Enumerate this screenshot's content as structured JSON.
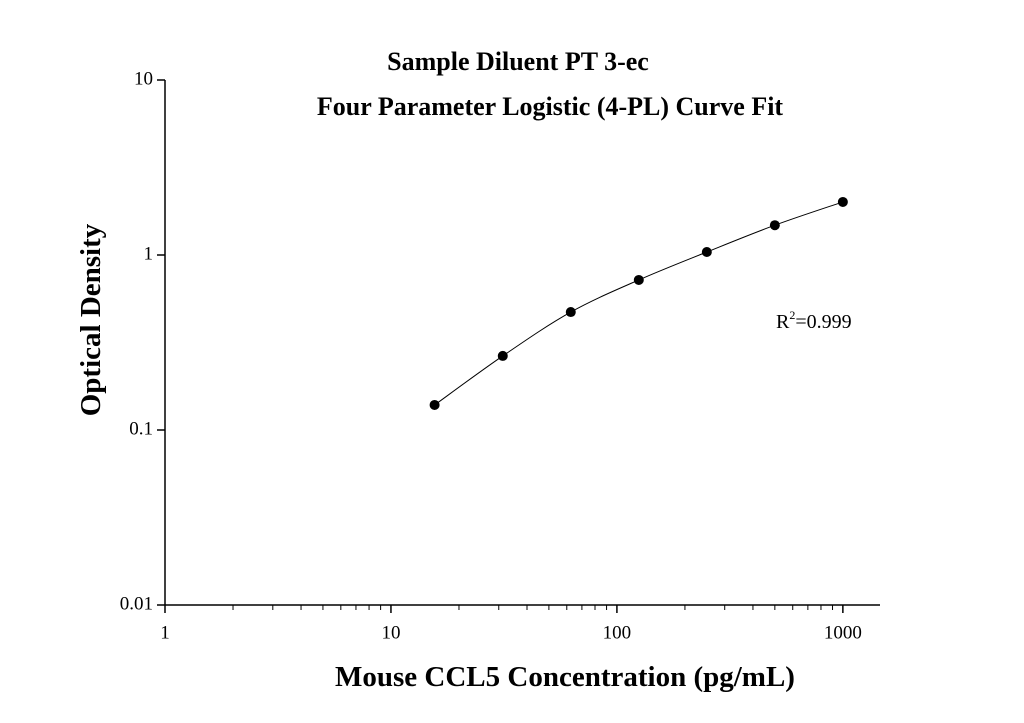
{
  "chart_data": {
    "type": "scatter",
    "title": "Sample Diluent PT 3-ec",
    "subtitle": "Four Parameter Logistic (4-PL) Curve Fit",
    "x_label": "Mouse CCL5 Concentration (pg/mL)",
    "y_label": "Optical Density",
    "annotation": {
      "base": "R",
      "sup": "2",
      "rest": "=0.999"
    },
    "x": [
      15.6,
      31.25,
      62.5,
      125,
      250,
      500,
      1000
    ],
    "values": [
      0.139,
      0.265,
      0.472,
      0.72,
      1.04,
      1.48,
      2.01
    ],
    "color": "#000000",
    "fit_line": true,
    "x_log": true,
    "y_log": true,
    "xlim": [
      1,
      1460
    ],
    "ylim": [
      0.01,
      10
    ],
    "xticks": [
      1,
      10,
      100,
      1000
    ],
    "xminorticks": [
      2,
      3,
      4,
      5,
      6,
      7,
      8,
      9,
      20,
      30,
      40,
      50,
      60,
      70,
      80,
      90,
      200,
      300,
      400,
      500,
      600,
      700,
      800,
      900
    ],
    "yticks": [
      0.01,
      0.1,
      1,
      10
    ]
  }
}
